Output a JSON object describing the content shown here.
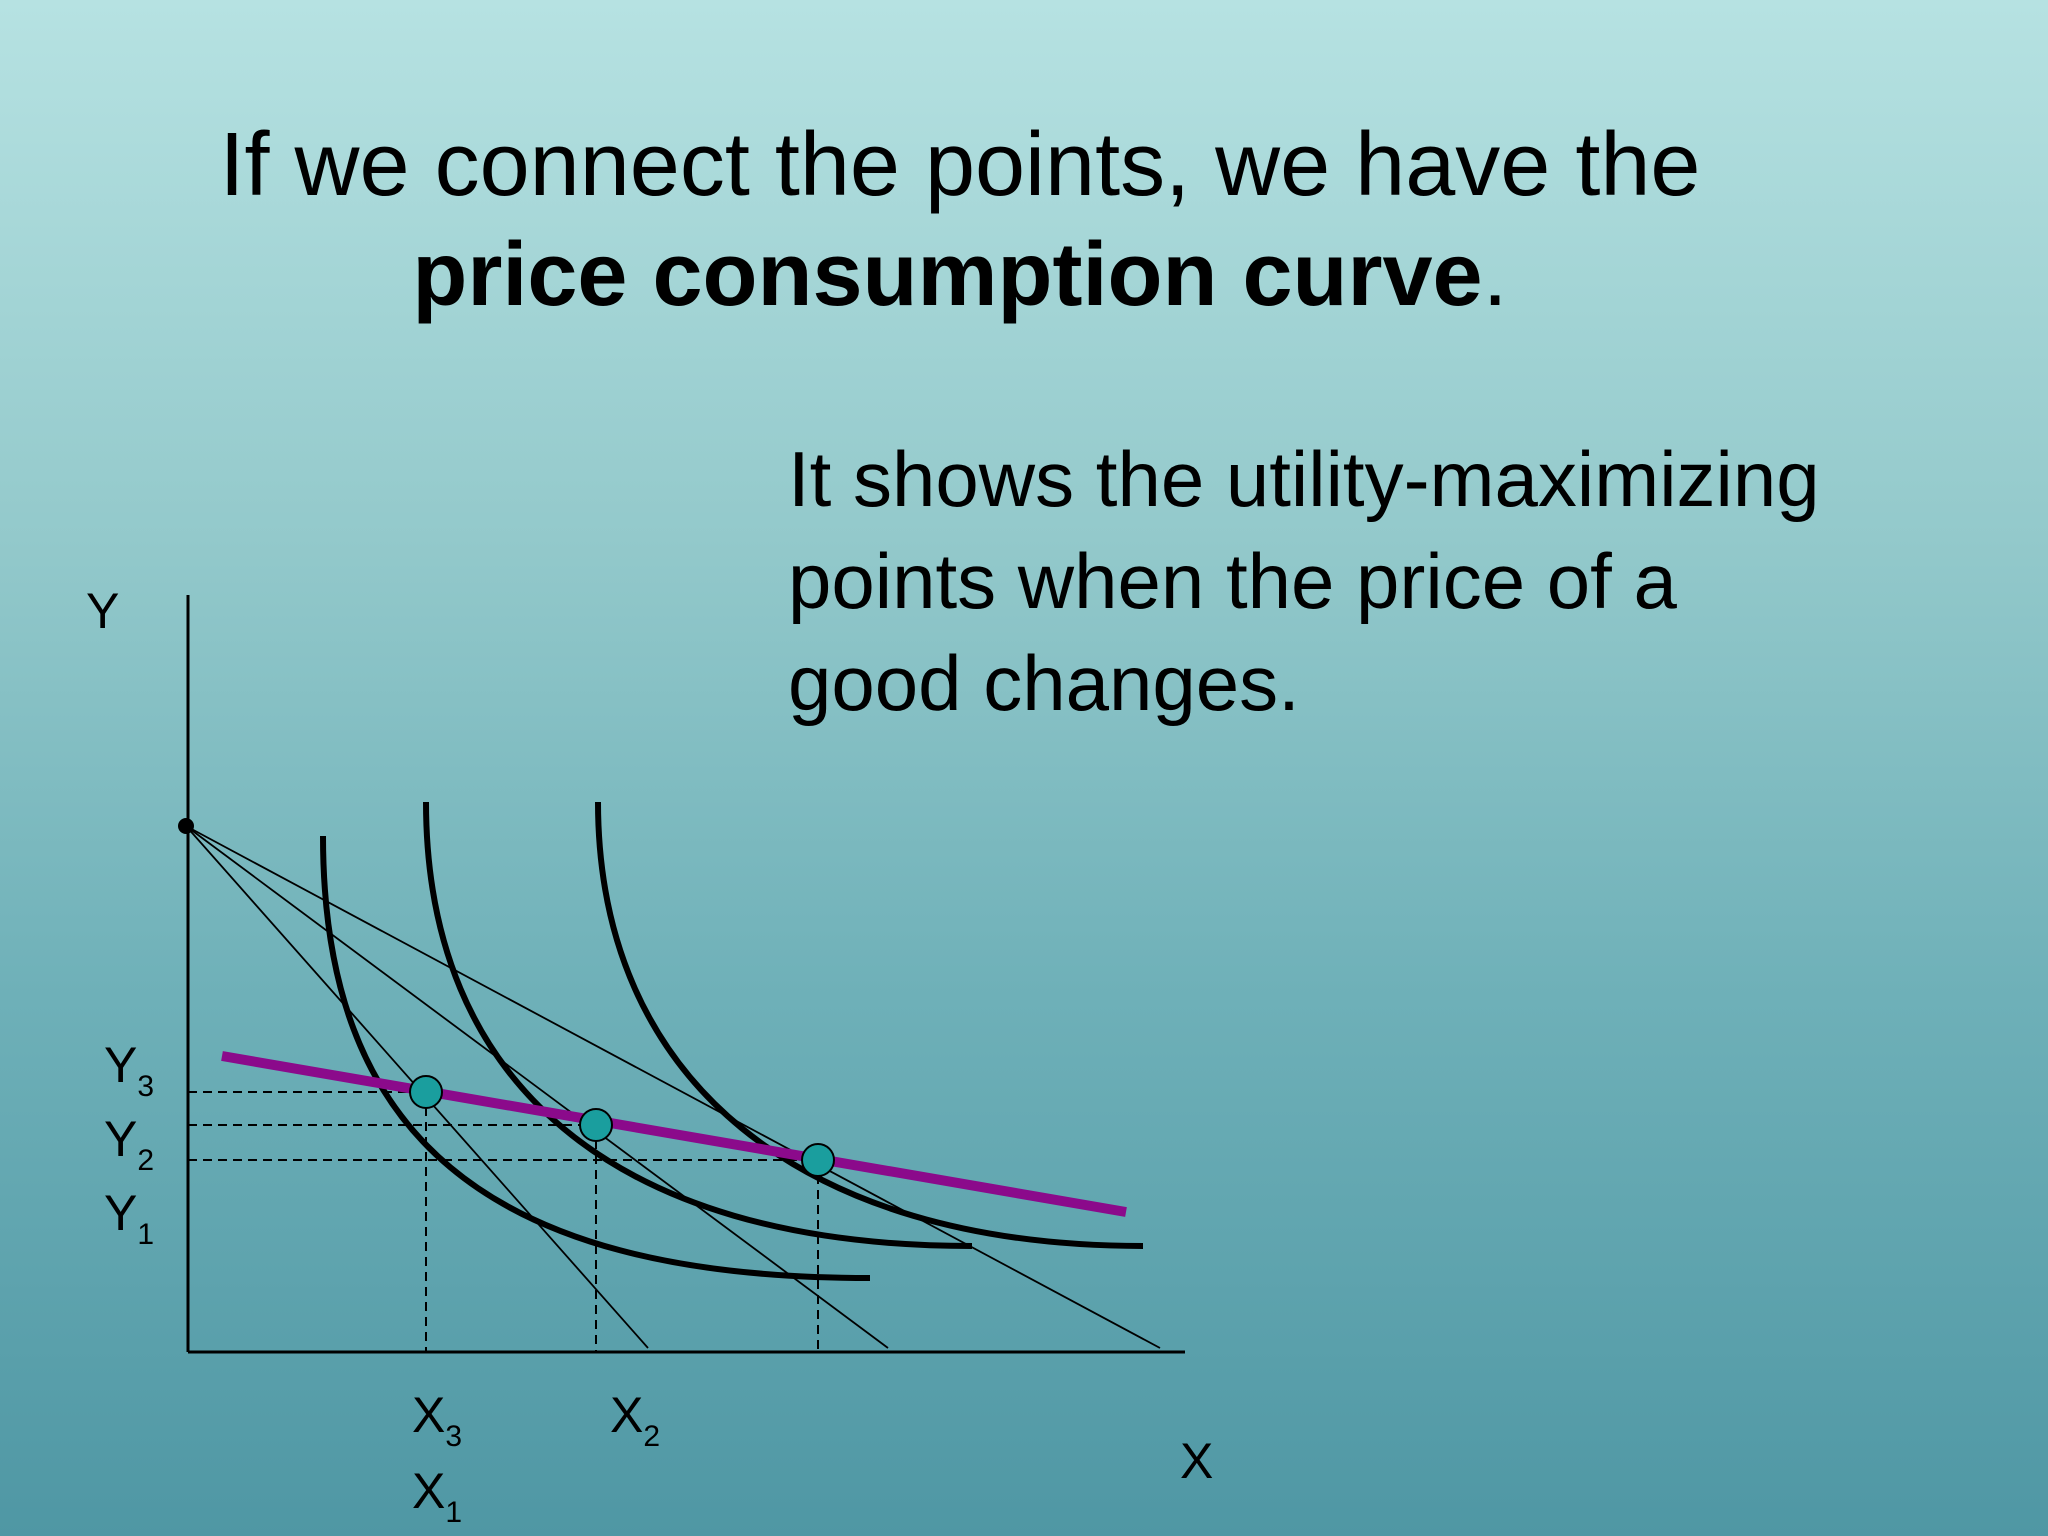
{
  "slide": {
    "title_line1": "If we connect the points, we have the",
    "title_bold": "price consumption curve",
    "title_end": ".",
    "description_lines": [
      "It shows the utility-maximizing",
      "points when the price of a",
      "good changes."
    ]
  },
  "diagram": {
    "axis_x": "X",
    "axis_y": "Y",
    "y_ticks": [
      {
        "main": "Y",
        "sub": "3"
      },
      {
        "main": "Y",
        "sub": "2"
      },
      {
        "main": "Y",
        "sub": "1"
      }
    ],
    "x_ticks": [
      {
        "main": "X",
        "sub": "3"
      },
      {
        "main": "X",
        "sub": "2"
      },
      {
        "main": "X",
        "sub": "1"
      }
    ],
    "colors": {
      "curve": "#000000",
      "price_consumption_curve": "#8b0a8b",
      "equilibrium_point": "#1a9e9e"
    }
  }
}
